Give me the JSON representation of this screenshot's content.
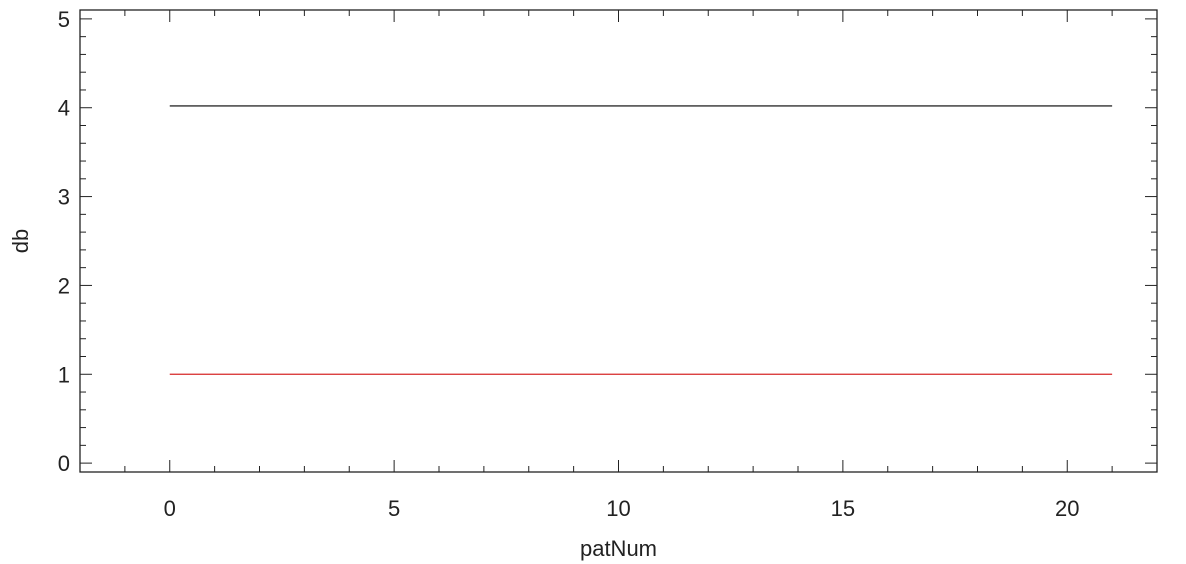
{
  "chart_data": {
    "type": "line",
    "title": "",
    "xlabel": "patNum",
    "ylabel": "db",
    "xlim": [
      -2,
      22
    ],
    "ylim": [
      -0.1,
      5.1
    ],
    "x_ticks": [
      0,
      5,
      10,
      15,
      20
    ],
    "y_ticks": [
      0,
      1,
      2,
      3,
      4,
      5
    ],
    "x_minor_step": 1,
    "y_minor_step": 0.2,
    "grid": false,
    "legend": "none",
    "series": [
      {
        "color": "#000000",
        "x": [
          0,
          21
        ],
        "y": [
          4.02,
          4.02
        ]
      },
      {
        "color": "#d62728",
        "x": [
          0,
          21
        ],
        "y": [
          1.0,
          1.0
        ]
      }
    ]
  }
}
